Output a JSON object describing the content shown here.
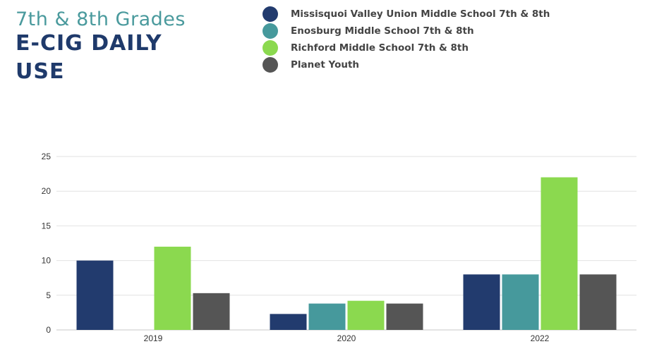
{
  "header": {
    "subtitle": "7th & 8th Grades",
    "title_line1": "E-CIG DAILY",
    "title_line2": "USE"
  },
  "colors": {
    "navy": "#223b6e",
    "teal": "#46999c",
    "green": "#8bd94f",
    "gray": "#555555"
  },
  "chart_data": {
    "type": "bar",
    "categories": [
      "2019",
      "2020",
      "2022"
    ],
    "ylim": [
      0,
      25
    ],
    "yticks": [
      0,
      5,
      10,
      15,
      20,
      25
    ],
    "grid": true,
    "legend_position": "top-right",
    "series": [
      {
        "name": "Missisquoi Valley Union Middle School 7th & 8th",
        "color": "#223b6e",
        "values": [
          10,
          2.3,
          8
        ]
      },
      {
        "name": "Enosburg Middle School 7th & 8th",
        "color": "#46999c",
        "values": [
          0,
          3.8,
          8
        ]
      },
      {
        "name": "Richford Middle School 7th & 8th",
        "color": "#8bd94f",
        "values": [
          12,
          4.2,
          22
        ]
      },
      {
        "name": "Planet Youth",
        "color": "#555555",
        "values": [
          5.3,
          3.8,
          8
        ]
      }
    ]
  }
}
